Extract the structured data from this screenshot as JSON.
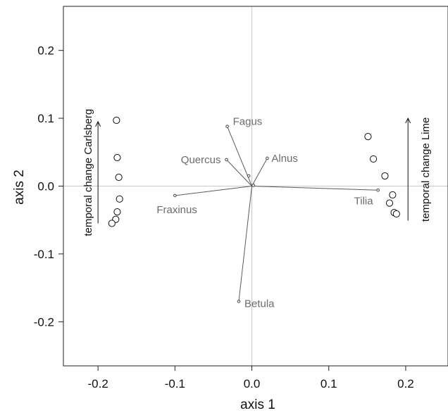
{
  "chart_data": {
    "type": "scatter",
    "title": "",
    "xlabel": "axis 1",
    "ylabel": "axis 2",
    "xlim": [
      -0.245,
      0.255
    ],
    "ylim": [
      -0.265,
      0.265
    ],
    "x_ticks": [
      -0.2,
      -0.1,
      0.0,
      0.1,
      0.2
    ],
    "y_ticks": [
      -0.2,
      -0.1,
      0.0,
      0.1,
      0.2
    ],
    "x_tick_labels": [
      "-0.2",
      "-0.1",
      "0.0",
      "0.1",
      "0.2"
    ],
    "y_tick_labels": [
      "-0.2",
      "-0.1",
      "0.0",
      "0.1",
      "0.2"
    ],
    "reference_lines": {
      "x": 0.0,
      "y": 0.0,
      "color": "#c8c8c8"
    },
    "grid": false,
    "series": [
      {
        "marker": "open-circle",
        "points": [
          {
            "x": -0.176,
            "y": 0.097
          },
          {
            "x": -0.175,
            "y": 0.042
          },
          {
            "x": -0.173,
            "y": 0.013
          },
          {
            "x": -0.172,
            "y": -0.019
          },
          {
            "x": -0.175,
            "y": -0.038
          },
          {
            "x": -0.177,
            "y": -0.049
          },
          {
            "x": -0.182,
            "y": -0.055
          }
        ]
      },
      {
        "marker": "open-circle",
        "points": [
          {
            "x": 0.151,
            "y": 0.073
          },
          {
            "x": 0.158,
            "y": 0.04
          },
          {
            "x": 0.173,
            "y": 0.015
          },
          {
            "x": 0.183,
            "y": -0.013
          },
          {
            "x": 0.179,
            "y": -0.025
          },
          {
            "x": 0.185,
            "y": -0.039
          },
          {
            "x": 0.188,
            "y": -0.041
          }
        ]
      }
    ],
    "vectors": [
      {
        "label": "Fagus",
        "x": -0.032,
        "y": 0.088
      },
      {
        "label": "Alnus",
        "x": 0.02,
        "y": 0.041
      },
      {
        "label": "Quercus",
        "x": -0.033,
        "y": 0.039
      },
      {
        "label": "Fraxinus",
        "x": -0.1,
        "y": -0.014
      },
      {
        "label": "Tilia",
        "x": 0.164,
        "y": -0.006
      },
      {
        "label": "Betula",
        "x": -0.017,
        "y": -0.17
      }
    ],
    "annotations": [
      {
        "text": "temporal change Carlsberg",
        "direction": "up",
        "x": -0.2,
        "y_from": -0.055,
        "y_to": 0.095
      },
      {
        "text": "temporal change Lime",
        "direction": "up",
        "x": 0.203,
        "y_from": -0.051,
        "y_to": 0.1
      }
    ]
  }
}
